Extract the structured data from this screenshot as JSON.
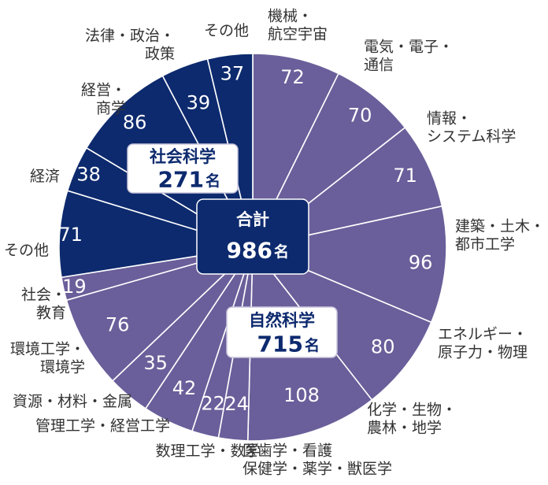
{
  "chart_data": {
    "type": "pie",
    "title": "",
    "total": {
      "label": "合計",
      "value": "986",
      "unit": "名"
    },
    "groups": [
      {
        "name": "自然科学",
        "value": "715",
        "unit": "名",
        "color": "#6a5f9a"
      },
      {
        "name": "社会科学",
        "value": "271",
        "unit": "名",
        "color": "#0d2a6e"
      }
    ],
    "slices": [
      {
        "label": "機械・\n航空宇宙",
        "value": 72,
        "group": "自然科学"
      },
      {
        "label": "電気・電子・\n通信",
        "value": 70,
        "group": "自然科学"
      },
      {
        "label": "情報・\nシステム科学",
        "value": 71,
        "group": "自然科学"
      },
      {
        "label": "建築・土木・\n都市工学",
        "value": 96,
        "group": "自然科学"
      },
      {
        "label": "エネルギー・\n原子力・物理",
        "value": 80,
        "group": "自然科学"
      },
      {
        "label": "化学・生物・\n農林・地学",
        "value": 108,
        "group": "自然科学"
      },
      {
        "label": "医歯学・看護\n保健学・薬学・獣医学",
        "value": 24,
        "group": "自然科学"
      },
      {
        "label": "",
        "value": 22,
        "group": "自然科学"
      },
      {
        "label": "数理工学・数学",
        "value": 42,
        "group": "自然科学"
      },
      {
        "label": "管理工学・経営工学",
        "value": 35,
        "group": "自然科学"
      },
      {
        "label": "資源・材料・金属",
        "value": 76,
        "group": "自然科学"
      },
      {
        "label": "環境工学・\n環境学",
        "value": 19,
        "group": "自然科学"
      },
      {
        "label": "その他",
        "value": 71,
        "group": "社会科学"
      },
      {
        "label": "経済",
        "value": 38,
        "group": "社会科学"
      },
      {
        "label": "経営・\n商学",
        "value": 86,
        "group": "社会科学"
      },
      {
        "label": "法律・政治・\n政策",
        "value": 39,
        "group": "社会科学"
      },
      {
        "label": "社会・\n教育",
        "value": 37,
        "group": "社会科学"
      },
      {
        "label": "その他",
        "value": 0,
        "group": "社会科学"
      }
    ]
  }
}
